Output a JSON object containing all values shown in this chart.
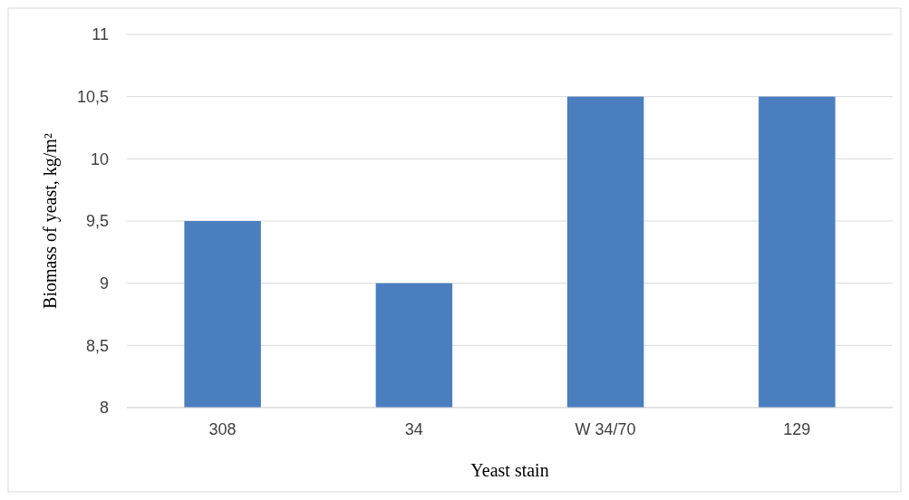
{
  "chart_data": {
    "type": "bar",
    "xlabel": "Yeast stain",
    "ylabel": "Biomass of yeast, kg/m²",
    "categories": [
      "308",
      "34",
      "W 34/70",
      "129"
    ],
    "values": [
      9.5,
      9,
      10.5,
      10.5
    ],
    "color": "#4a7ebf",
    "ylim": [
      8,
      11
    ],
    "yticks": [
      8,
      {
        "value": 8.5,
        "label": "8,5"
      },
      9,
      {
        "value": 9.5,
        "label": "9,5"
      },
      10,
      {
        "value": 10.5,
        "label": "10,5"
      },
      11
    ],
    "grid": "y"
  }
}
